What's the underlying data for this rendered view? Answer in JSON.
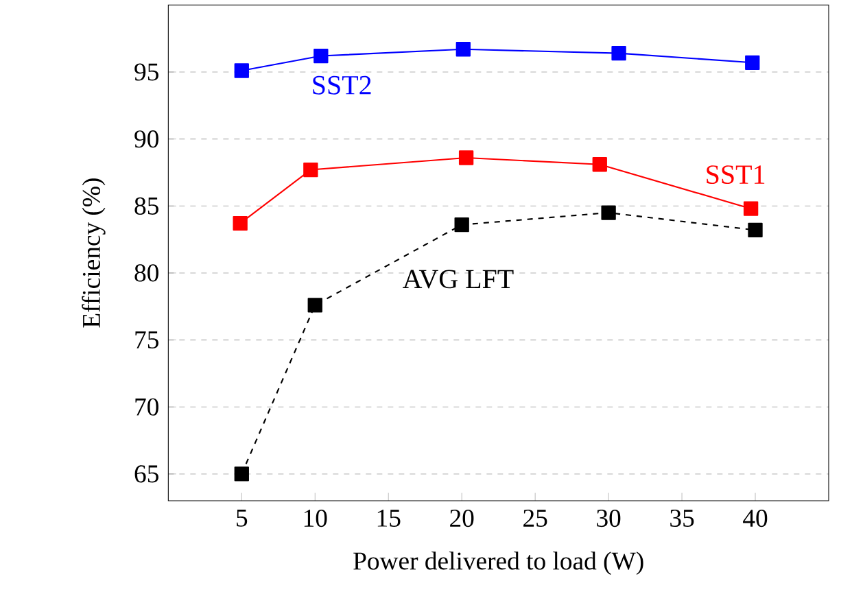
{
  "chart_data": {
    "type": "line",
    "xlabel": "Power delivered to load (W)",
    "ylabel": "Efficiency (%)",
    "xlim": [
      0,
      45
    ],
    "xticks": [
      5,
      10,
      15,
      20,
      25,
      30,
      35,
      40
    ],
    "ylim": [
      63,
      100
    ],
    "yticks": [
      65,
      70,
      75,
      80,
      85,
      90,
      95
    ],
    "grid": "y",
    "marker": "square",
    "series": [
      {
        "name": "SST2",
        "color": "#0000ff",
        "line_style": "solid",
        "x": [
          5,
          10.4,
          20.1,
          30.7,
          39.8
        ],
        "values": [
          95.1,
          96.2,
          96.7,
          96.4,
          95.7
        ]
      },
      {
        "name": "SST1",
        "color": "#ff0000",
        "line_style": "solid",
        "x": [
          4.9,
          9.7,
          20.3,
          29.4,
          39.7
        ],
        "values": [
          83.7,
          87.7,
          88.6,
          88.1,
          84.8
        ]
      },
      {
        "name": "AVG LFT",
        "color": "#000000",
        "line_style": "dashed",
        "x": [
          5,
          10,
          20,
          30,
          40
        ],
        "values": [
          65.0,
          77.6,
          83.6,
          84.5,
          83.2
        ]
      }
    ]
  }
}
